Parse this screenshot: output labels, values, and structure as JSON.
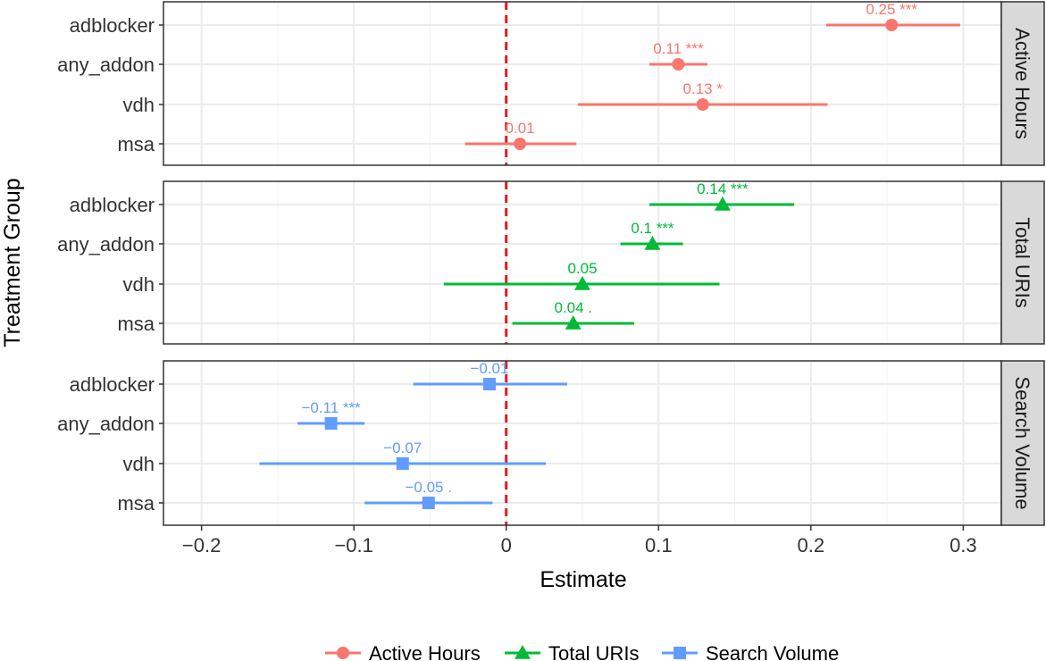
{
  "colors": {
    "active_hours": "#F8766D",
    "total_uris": "#00BA38",
    "search_volume": "#619CFF",
    "zero_line": "#E31A1C",
    "grid": "#EBEBEB",
    "strip_fill": "#D9D9D9",
    "panel_border": "#333333"
  },
  "chart_data": {
    "type": "scatter",
    "variant": "faceted-coefficient-plot-with-error-bars",
    "xlabel": "Estimate",
    "ylabel": "Treatment Group",
    "xlim": [
      -0.225,
      0.325
    ],
    "x_ticks": [
      -0.2,
      -0.1,
      0,
      0.1,
      0.2,
      0.3
    ],
    "x_tick_labels": [
      "−0.2",
      "−0.1",
      "0",
      "0.1",
      "0.2",
      "0.3"
    ],
    "categories": [
      "adblocker",
      "any_addon",
      "vdh",
      "msa"
    ],
    "reference_line": {
      "x": 0,
      "style": "dashed"
    },
    "grid": true,
    "legend_position": "bottom",
    "legend": [
      {
        "label": "Active Hours",
        "marker": "circle",
        "color_key": "active_hours"
      },
      {
        "label": "Total URIs",
        "marker": "triangle",
        "color_key": "total_uris"
      },
      {
        "label": "Search Volume",
        "marker": "square",
        "color_key": "search_volume"
      }
    ],
    "facets": [
      {
        "strip": "Active Hours",
        "marker": "circle",
        "color_key": "active_hours",
        "points": [
          {
            "group": "adblocker",
            "estimate": 0.253,
            "low": 0.21,
            "high": 0.298,
            "label": "0.25 ***"
          },
          {
            "group": "any_addon",
            "estimate": 0.113,
            "low": 0.094,
            "high": 0.132,
            "label": "0.11 ***"
          },
          {
            "group": "vdh",
            "estimate": 0.129,
            "low": 0.047,
            "high": 0.211,
            "label": "0.13 *"
          },
          {
            "group": "msa",
            "estimate": 0.009,
            "low": -0.027,
            "high": 0.046,
            "label": "0.01"
          }
        ]
      },
      {
        "strip": "Total URIs",
        "marker": "triangle",
        "color_key": "total_uris",
        "points": [
          {
            "group": "adblocker",
            "estimate": 0.142,
            "low": 0.094,
            "high": 0.189,
            "label": "0.14 ***"
          },
          {
            "group": "any_addon",
            "estimate": 0.096,
            "low": 0.075,
            "high": 0.116,
            "label": "0.1 ***"
          },
          {
            "group": "vdh",
            "estimate": 0.05,
            "low": -0.041,
            "high": 0.14,
            "label": "0.05"
          },
          {
            "group": "msa",
            "estimate": 0.044,
            "low": 0.004,
            "high": 0.084,
            "label": "0.04 ."
          }
        ]
      },
      {
        "strip": "Search Volume",
        "marker": "square",
        "color_key": "search_volume",
        "points": [
          {
            "group": "adblocker",
            "estimate": -0.011,
            "low": -0.061,
            "high": 0.04,
            "label": "−0.01"
          },
          {
            "group": "any_addon",
            "estimate": -0.115,
            "low": -0.137,
            "high": -0.093,
            "label": "−0.11 ***"
          },
          {
            "group": "vdh",
            "estimate": -0.068,
            "low": -0.162,
            "high": 0.026,
            "label": "−0.07"
          },
          {
            "group": "msa",
            "estimate": -0.051,
            "low": -0.093,
            "high": -0.009,
            "label": "−0.05 ."
          }
        ]
      }
    ]
  }
}
